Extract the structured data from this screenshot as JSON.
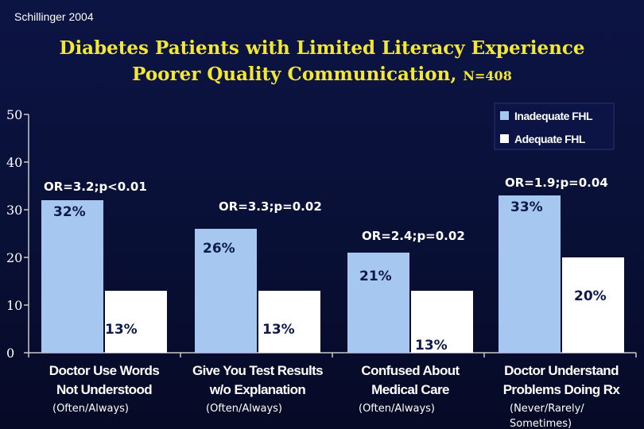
{
  "header": {
    "source": "Schillinger 2004",
    "title_line1": "Diabetes Patients with Limited Literacy Experience",
    "title_line2": "Poorer Quality Communication,",
    "title_n": "N=408"
  },
  "colors": {
    "inadequate": "#a6c8f0",
    "adequate": "#ffffff",
    "background": "#0a1240",
    "title": "#f2e833",
    "axis": "#c8c8c8"
  },
  "chart_data": {
    "type": "bar",
    "ylim": [
      0,
      50
    ],
    "yticks": [
      0,
      10,
      20,
      30,
      40,
      50
    ],
    "grid": false,
    "legend_position": "top-right",
    "categories": [
      "Doctor Use Words Not Understood",
      "Give You Test Results w/o Explanation",
      "Confused About Medical Care",
      "Doctor Understand Problems Doing Rx"
    ],
    "category_lines": [
      [
        "Doctor Use Words",
        "Not Understood"
      ],
      [
        "Give You Test Results",
        "w/o Explanation"
      ],
      [
        "Confused About",
        "Medical Care"
      ],
      [
        "Doctor Understand",
        "Problems Doing Rx"
      ]
    ],
    "notes": [
      [
        "(Often/Always)"
      ],
      [
        "(Often/Always)"
      ],
      [
        "(Often/Always)"
      ],
      [
        "(Never/Rarely/",
        "Sometimes)"
      ]
    ],
    "series": [
      {
        "name": "Inadequate FHL",
        "values": [
          32,
          26,
          21,
          33
        ],
        "labels": [
          "32%",
          "26%",
          "21%",
          "33%"
        ]
      },
      {
        "name": "Adequate FHL",
        "values": [
          13,
          13,
          13,
          20
        ],
        "labels": [
          "13%",
          "13%",
          "13%",
          "20%"
        ]
      }
    ],
    "annotations": [
      "OR=3.2;p<0.01",
      "OR=3.3;p=0.02",
      "OR=2.4;p=0.02",
      "OR=1.9;p=0.04"
    ]
  }
}
